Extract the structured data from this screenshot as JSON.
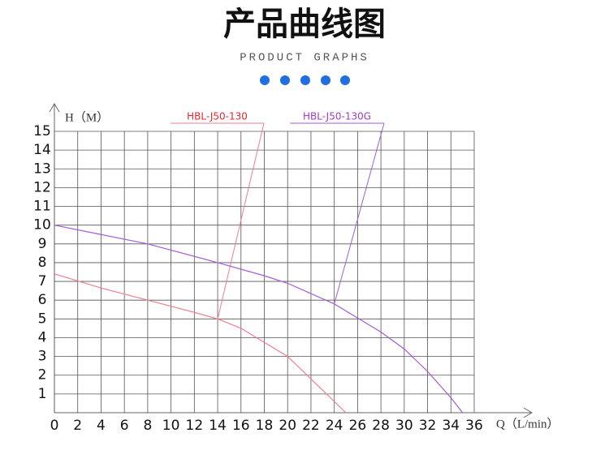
{
  "chart_data": {
    "type": "line",
    "title": "产品曲线图",
    "subtitle": "PRODUCT GRAPHS",
    "y_label": "H（M）",
    "x_label": "Q（L/min）",
    "xlim": [
      0,
      36
    ],
    "ylim": [
      0,
      15
    ],
    "xticks": [
      0,
      2,
      4,
      6,
      8,
      10,
      12,
      14,
      16,
      18,
      20,
      22,
      24,
      26,
      28,
      30,
      32,
      34,
      36
    ],
    "yticks": [
      1,
      2,
      3,
      4,
      5,
      6,
      7,
      8,
      9,
      10,
      11,
      12,
      13,
      14,
      15
    ],
    "grid": true,
    "series": [
      {
        "name": "HBL-J50-130",
        "color": "#f07f8d",
        "label_color": "#e8242e",
        "x": [
          0,
          4,
          8,
          12,
          14,
          16,
          20,
          24,
          25
        ],
        "values": [
          7.4,
          6.65,
          6.0,
          5.35,
          5.0,
          4.5,
          3.0,
          0.6,
          0
        ]
      },
      {
        "name": "HBL-J50-130G",
        "color": "#a45bd6",
        "label_color": "#a03cc8",
        "x": [
          0,
          4,
          8,
          14,
          18,
          20,
          24,
          28,
          30,
          32,
          34,
          35
        ],
        "values": [
          10,
          9.5,
          9.0,
          8.0,
          7.3,
          6.9,
          5.8,
          4.3,
          3.4,
          2.2,
          0.8,
          0
        ]
      }
    ]
  }
}
